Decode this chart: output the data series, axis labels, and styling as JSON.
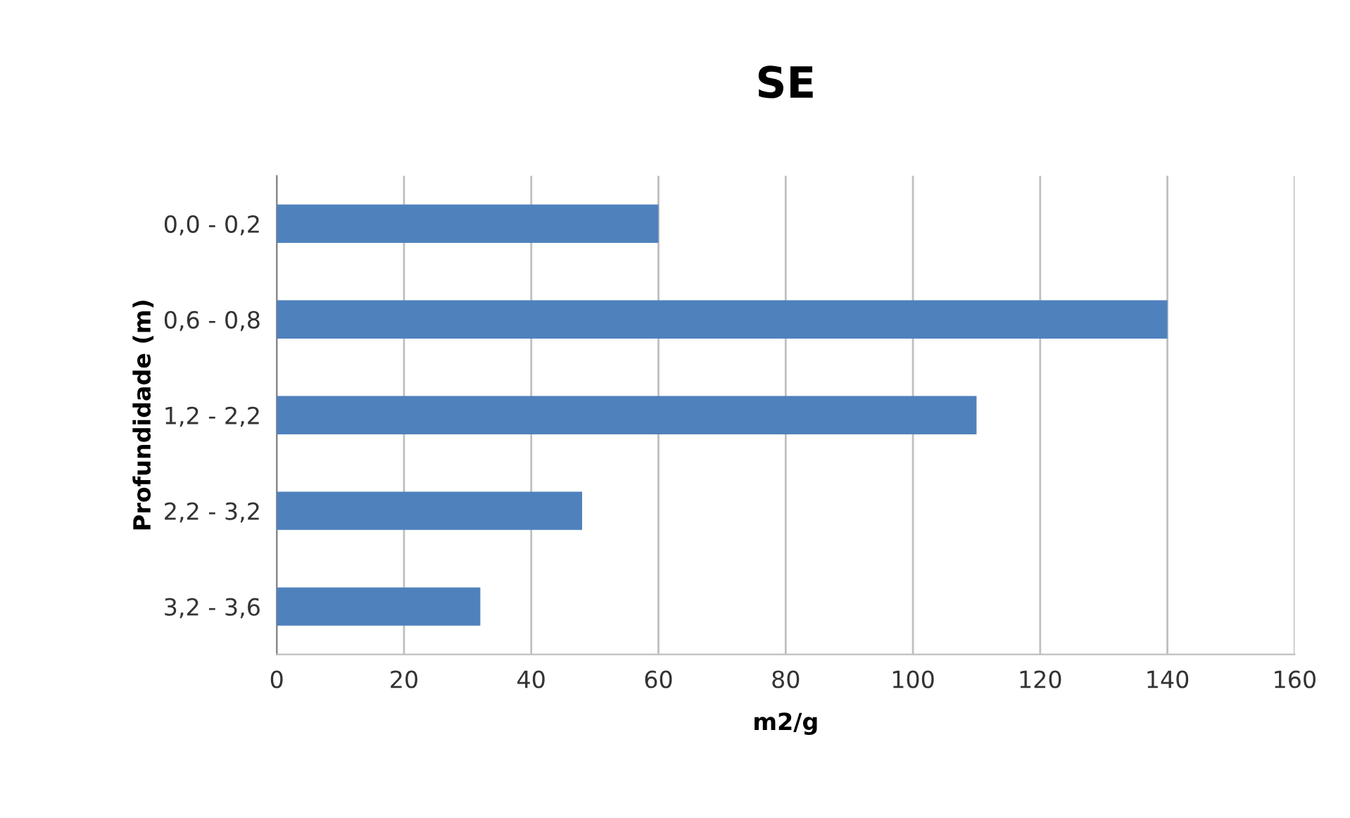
{
  "chart_data": {
    "type": "bar",
    "orientation": "horizontal",
    "title": "SE",
    "xlabel": "m2/g",
    "ylabel": "Profundidade (m)",
    "categories": [
      "0,0 - 0,2",
      "0,6 - 0,8",
      "1,2 - 2,2",
      "2,2 - 3,2",
      "3,2 - 3,6"
    ],
    "values": [
      60,
      140,
      110,
      48,
      32
    ],
    "color": "#4f81bd",
    "xlim": [
      0,
      160
    ],
    "xticks": [
      0,
      20,
      40,
      60,
      80,
      100,
      120,
      140,
      160
    ],
    "grid": "x",
    "legend": false
  }
}
